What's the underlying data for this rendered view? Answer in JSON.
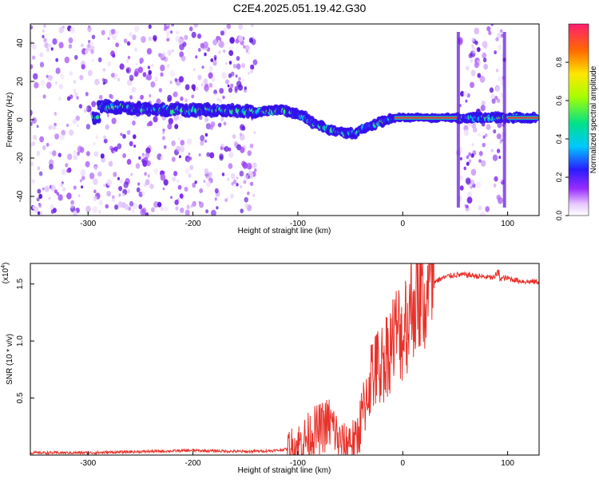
{
  "page_title": "C2E4.2025.051.19.42.G30",
  "chart_data": [
    {
      "type": "heatmap",
      "xlabel": "Height of straight line (km)",
      "ylabel": "Frequency (Hz)",
      "xlim": [
        -355,
        130
      ],
      "ylim": [
        -50,
        50
      ],
      "xticks": [
        -300,
        -200,
        -100,
        0,
        100
      ],
      "yticks": [
        -40,
        -20,
        0,
        20,
        40
      ],
      "colorbar": {
        "label": "Normalized spectral amplitude",
        "range": [
          0,
          1
        ],
        "ticks": [
          0.0,
          0.2,
          0.4,
          0.6,
          0.8
        ]
      },
      "ridge_center_hz": {
        "x": [
          -290,
          -260,
          -230,
          -200,
          -170,
          -140,
          -115,
          -95,
          -85,
          -75,
          -65,
          -55,
          -45,
          -35,
          -25,
          -15,
          -5,
          0,
          20,
          50,
          55,
          95,
          100,
          130
        ],
        "y": [
          7,
          6,
          5,
          5,
          5,
          4,
          5,
          2,
          -2,
          -4,
          -6,
          -7,
          -7,
          -4,
          -2,
          0,
          1,
          1,
          1,
          1,
          1,
          1,
          1,
          1
        ]
      },
      "noise_regions_km": [
        [
          -355,
          -140
        ],
        [
          53,
          97
        ]
      ]
    },
    {
      "type": "line",
      "xlabel": "Height of straight line (km)",
      "ylabel": "SNR (10 * v/v)",
      "scale_label": "(x10",
      "scale_exponent": "4",
      "xlim": [
        -355,
        130
      ],
      "ylim": [
        0,
        1.68
      ],
      "xticks": [
        -300,
        -200,
        -100,
        0,
        100
      ],
      "yticks": [
        0.5,
        1.0,
        1.5
      ],
      "ytick_labels": [
        "0.5",
        "1.0",
        "1.5"
      ],
      "color": "#e8322a",
      "series": [
        {
          "x": [
            -355,
            -300,
            -250,
            -200,
            -150,
            -120,
            -105,
            -95,
            -85,
            -80,
            -75,
            -70,
            -65,
            -60,
            -55,
            -50,
            -45,
            -40,
            -35,
            -30,
            -25,
            -20,
            -15,
            -10,
            -5,
            0,
            5,
            10,
            15,
            20,
            25,
            30,
            40,
            50,
            60,
            70,
            80,
            90,
            100,
            110,
            120,
            130
          ],
          "y": [
            0.02,
            0.02,
            0.03,
            0.04,
            0.03,
            0.04,
            0.06,
            0.12,
            0.2,
            0.22,
            0.25,
            0.28,
            0.22,
            0.1,
            0.08,
            0.15,
            0.1,
            0.3,
            0.5,
            0.7,
            0.75,
            0.8,
            0.9,
            1.0,
            1.1,
            1.05,
            1.2,
            1.35,
            1.4,
            1.3,
            1.45,
            1.52,
            1.56,
            1.58,
            1.58,
            1.57,
            1.56,
            1.55,
            1.55,
            1.53,
            1.52,
            1.52
          ]
        }
      ]
    }
  ]
}
